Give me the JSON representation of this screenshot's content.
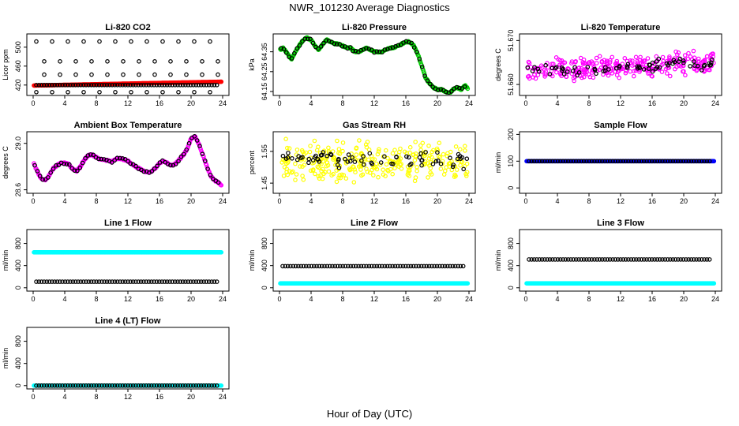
{
  "figure": {
    "title": "NWR_101230  Average Diagnostics",
    "xlabel": "Hour of Day (UTC)"
  },
  "colors": {
    "black": "#000000",
    "red": "#ff0000",
    "green": "#00cc00",
    "magenta": "#ff00ff",
    "yellow": "#ffff00",
    "blue": "#0000ff",
    "cyan": "#00ffff"
  },
  "chart_data": [
    {
      "type": "scatter",
      "title": "Li-820 CO2",
      "ylabel": "Licor ppm",
      "xlim": [
        0,
        24
      ],
      "ylim": [
        398,
        528
      ],
      "xticks": [
        "0",
        "4",
        "8",
        "12",
        "16",
        "20",
        "24"
      ],
      "yticks": [
        "420",
        "460",
        "500"
      ],
      "series": [
        {
          "color": "red",
          "kind": "band",
          "y_start": 419,
          "y_end": 427
        },
        {
          "color": "black",
          "kind": "levels",
          "levels": [
            420,
            470,
            512,
            442,
            405
          ]
        }
      ]
    },
    {
      "type": "scatter",
      "title": "Li-820 Pressure",
      "ylabel": "kPa",
      "xlim": [
        0,
        24
      ],
      "ylim": [
        64.13,
        64.44
      ],
      "xticks": [
        "0",
        "4",
        "8",
        "12",
        "16",
        "20",
        "24"
      ],
      "yticks": [
        "64.15",
        "64.25",
        "64.35"
      ],
      "series": [
        {
          "color": "green",
          "kind": "curve",
          "x": [
            0,
            0.5,
            1,
            1.5,
            2,
            2.5,
            3,
            3.5,
            4,
            4.5,
            5,
            5.5,
            6,
            6.5,
            7,
            7.5,
            8,
            8.5,
            9,
            9.5,
            10,
            10.5,
            11,
            11.5,
            12,
            12.5,
            13,
            13.5,
            14,
            14.5,
            15,
            15.5,
            16,
            16.5,
            17,
            17.5,
            18,
            18.5,
            19,
            19.5,
            20,
            20.5,
            21,
            21.5,
            22,
            22.5,
            23,
            23.5,
            24
          ],
          "y": [
            64.36,
            64.37,
            64.34,
            64.31,
            64.35,
            64.38,
            64.41,
            64.42,
            64.41,
            64.38,
            64.36,
            64.39,
            64.41,
            64.4,
            64.39,
            64.39,
            64.38,
            64.37,
            64.37,
            64.35,
            64.35,
            64.36,
            64.37,
            64.36,
            64.35,
            64.35,
            64.35,
            64.36,
            64.37,
            64.37,
            64.38,
            64.39,
            64.4,
            64.4,
            64.38,
            64.34,
            64.28,
            64.22,
            64.19,
            64.17,
            64.16,
            64.16,
            64.15,
            64.14,
            64.16,
            64.17,
            64.16,
            64.18,
            64.16
          ]
        }
      ]
    },
    {
      "type": "scatter",
      "title": "Li-820 Temperature",
      "ylabel": "degrees C",
      "xlim": [
        0,
        24
      ],
      "ylim": [
        51.6575,
        51.6715
      ],
      "xticks": [
        "0",
        "4",
        "8",
        "12",
        "16",
        "20",
        "24"
      ],
      "yticks": [
        "51.660",
        "51.670"
      ],
      "series": [
        {
          "color": "magenta",
          "kind": "noise",
          "y_start": 51.663,
          "y_end": 51.665,
          "spread": 0.003
        },
        {
          "color": "black",
          "kind": "noise",
          "y_start": 51.663,
          "y_end": 51.665,
          "spread": 0.0018
        }
      ]
    },
    {
      "type": "scatter",
      "title": "Ambient Box Temperature",
      "ylabel": "degrees C",
      "xlim": [
        0,
        24
      ],
      "ylim": [
        28.57,
        29.1
      ],
      "xticks": [
        "0",
        "4",
        "8",
        "12",
        "16",
        "20",
        "24"
      ],
      "yticks": [
        "28.6",
        "29.0"
      ],
      "series": [
        {
          "color": "magenta",
          "kind": "curve",
          "x": [
            0,
            0.5,
            1,
            1.5,
            2,
            2.5,
            3,
            3.5,
            4,
            4.5,
            5,
            5.5,
            6,
            6.5,
            7,
            7.5,
            8,
            8.5,
            9,
            9.5,
            10,
            10.5,
            11,
            11.5,
            12,
            12.5,
            13,
            13.5,
            14,
            14.5,
            15,
            15.5,
            16,
            16.5,
            17,
            17.5,
            18,
            18.5,
            19,
            19.5,
            20,
            20.5,
            21,
            21.5,
            22,
            22.5,
            23,
            23.5,
            24
          ],
          "y": [
            28.84,
            28.76,
            28.7,
            28.68,
            28.72,
            28.78,
            28.81,
            28.83,
            28.83,
            28.82,
            28.78,
            28.76,
            28.8,
            28.86,
            28.9,
            28.9,
            28.88,
            28.86,
            28.86,
            28.85,
            28.84,
            28.87,
            28.87,
            28.86,
            28.85,
            28.82,
            28.8,
            28.78,
            28.76,
            28.75,
            28.76,
            28.79,
            28.83,
            28.85,
            28.83,
            28.81,
            28.82,
            28.86,
            28.9,
            28.95,
            29.04,
            29.06,
            28.99,
            28.9,
            28.8,
            28.72,
            28.68,
            28.66,
            28.63
          ]
        }
      ]
    },
    {
      "type": "scatter",
      "title": "Gas Stream RH",
      "ylabel": "percent",
      "xlim": [
        0,
        24
      ],
      "ylim": [
        1.418,
        1.612
      ],
      "xticks": [
        "0",
        "4",
        "8",
        "12",
        "16",
        "20",
        "24"
      ],
      "yticks": [
        "1.45",
        "1.55"
      ],
      "series": [
        {
          "color": "yellow",
          "kind": "noise",
          "y_start": 1.52,
          "y_end": 1.52,
          "spread": 0.07
        },
        {
          "color": "black",
          "kind": "noise",
          "y_start": 1.53,
          "y_end": 1.52,
          "spread": 0.035
        }
      ]
    },
    {
      "type": "scatter",
      "title": "Sample Flow",
      "ylabel": "ml/min",
      "xlim": [
        0,
        24
      ],
      "ylim": [
        -20,
        210
      ],
      "xticks": [
        "0",
        "4",
        "8",
        "12",
        "16",
        "20",
        "24"
      ],
      "yticks": [
        "0",
        "100",
        "200"
      ],
      "series": [
        {
          "color": "blue",
          "kind": "band",
          "y_start": 100,
          "y_end": 100
        },
        {
          "color": "black",
          "kind": "levels",
          "levels": [
            100
          ]
        }
      ]
    },
    {
      "type": "scatter",
      "title": "Line 1 Flow",
      "ylabel": "ml/min",
      "xlim": [
        0,
        24
      ],
      "ylim": [
        -60,
        1050
      ],
      "xticks": [
        "0",
        "4",
        "8",
        "12",
        "16",
        "20",
        "24"
      ],
      "yticks": [
        "0",
        "400",
        "800"
      ],
      "series": [
        {
          "color": "cyan",
          "kind": "band",
          "y_start": 640,
          "y_end": 640
        },
        {
          "color": "black",
          "kind": "levels",
          "levels": [
            110
          ]
        }
      ]
    },
    {
      "type": "scatter",
      "title": "Line 2 Flow",
      "ylabel": "ml/min",
      "xlim": [
        0,
        24
      ],
      "ylim": [
        -60,
        1050
      ],
      "xticks": [
        "0",
        "4",
        "8",
        "12",
        "16",
        "20",
        "24"
      ],
      "yticks": [
        "0",
        "400",
        "800"
      ],
      "series": [
        {
          "color": "cyan",
          "kind": "band",
          "y_start": 80,
          "y_end": 80
        },
        {
          "color": "black",
          "kind": "levels",
          "levels": [
            390
          ]
        }
      ]
    },
    {
      "type": "scatter",
      "title": "Line 3 Flow",
      "ylabel": "ml/min",
      "xlim": [
        0,
        24
      ],
      "ylim": [
        -60,
        1050
      ],
      "xticks": [
        "0",
        "4",
        "8",
        "12",
        "16",
        "20",
        "24"
      ],
      "yticks": [
        "0",
        "400",
        "800"
      ],
      "series": [
        {
          "color": "cyan",
          "kind": "band",
          "y_start": 80,
          "y_end": 80
        },
        {
          "color": "black",
          "kind": "levels",
          "levels": [
            510
          ]
        }
      ]
    },
    {
      "type": "scatter",
      "title": "Line 4 (LT) Flow",
      "ylabel": "ml/min",
      "xlim": [
        0,
        24
      ],
      "ylim": [
        -60,
        1050
      ],
      "xticks": [
        "0",
        "4",
        "8",
        "12",
        "16",
        "20",
        "24"
      ],
      "yticks": [
        "0",
        "400",
        "800"
      ],
      "series": [
        {
          "color": "cyan",
          "kind": "band",
          "y_start": 0,
          "y_end": 0
        },
        {
          "color": "black",
          "kind": "levels",
          "levels": [
            0
          ]
        }
      ]
    }
  ]
}
